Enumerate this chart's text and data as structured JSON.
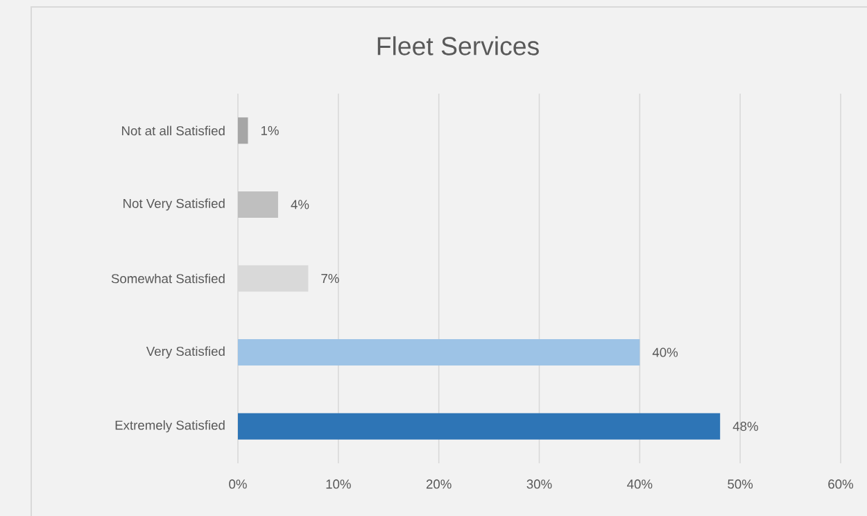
{
  "chart_data": {
    "type": "bar",
    "orientation": "horizontal",
    "title": "Fleet Services",
    "categories": [
      "Not at all Satisfied",
      "Not Very Satisfied",
      "Somewhat Satisfied",
      "Very Satisfied",
      "Extremely Satisfied"
    ],
    "values": [
      1,
      4,
      7,
      40,
      48
    ],
    "colors": [
      "#a6a6a6",
      "#bfbfbf",
      "#d9d9d9",
      "#9dc3e6",
      "#2e75b6"
    ],
    "value_labels": [
      "1%",
      "4%",
      "7%",
      "40%",
      "48%"
    ],
    "xlim": [
      0,
      60
    ],
    "xticks": [
      {
        "value": 0,
        "label": "0%"
      },
      {
        "value": 10,
        "label": "10%"
      },
      {
        "value": 20,
        "label": "20%"
      },
      {
        "value": 30,
        "label": "30%"
      },
      {
        "value": 40,
        "label": "40%"
      },
      {
        "value": 50,
        "label": "50%"
      },
      {
        "value": 60,
        "label": "60%"
      }
    ],
    "grid": "x"
  }
}
